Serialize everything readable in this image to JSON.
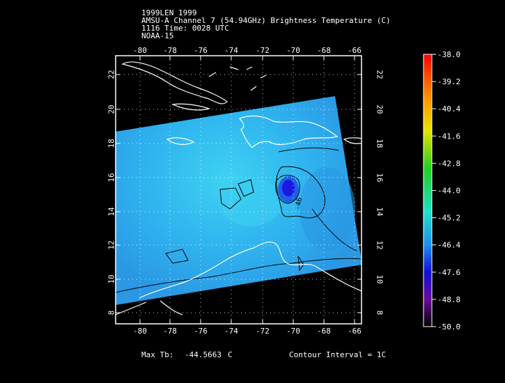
{
  "header": {
    "line1": "1999LEN 1999",
    "line2": "AMSU-A Channel 7 (54.94GHz) Brightness Temperature (C)",
    "line3": "1116 Time: 0028 UTC",
    "line4": "NOAA-15"
  },
  "footer": {
    "max_label": "Max Tb:",
    "max_value": "-44.5663",
    "max_unit": "C",
    "contour_interval": "Contour Interval = 1C"
  },
  "map": {
    "lon_ticks": [
      "-80",
      "-78",
      "-76",
      "-74",
      "-72",
      "-70",
      "-68",
      "-66"
    ],
    "lat_ticks": [
      "22",
      "20",
      "18",
      "16",
      "14",
      "12",
      "10",
      "8"
    ],
    "contour_label": "-46",
    "colors": {
      "swath_main": "#2fb4ef",
      "swath_light": "#37c3f3",
      "swath_dark": "#2a9de6",
      "cold_core": "#1a1ae0",
      "coast": "#ffffff",
      "contour": "#000000"
    }
  },
  "colorbar": {
    "labels": [
      "-38.0",
      "-39.2",
      "-40.4",
      "-41.6",
      "-42.8",
      "-44.0",
      "-45.2",
      "-46.4",
      "-47.6",
      "-48.8",
      "-50.0"
    ]
  }
}
